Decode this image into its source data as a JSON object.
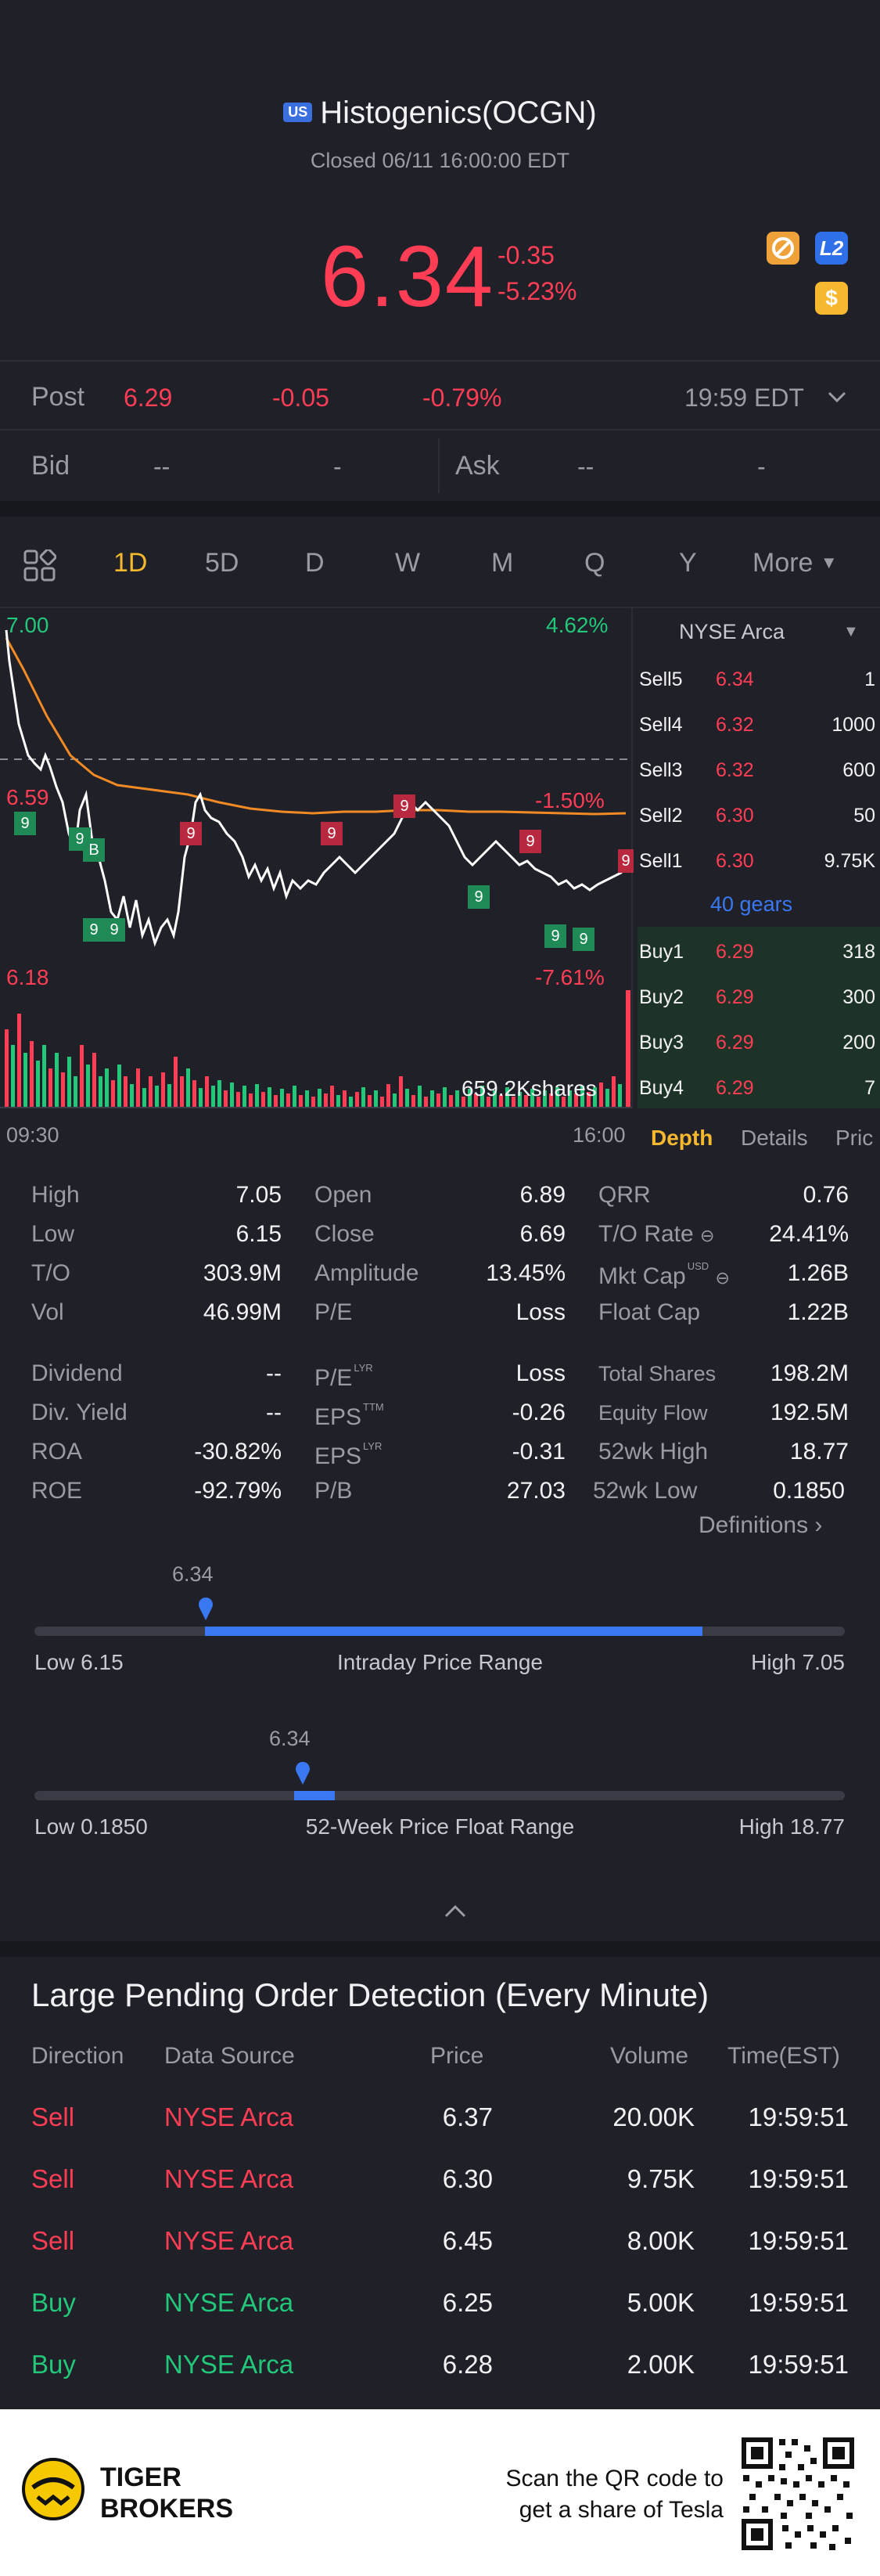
{
  "header": {
    "market_badge": "US",
    "title": "Histogenics(OCGN)",
    "status": "Closed 06/11 16:00:00 EDT",
    "price": "6.34",
    "change": "-0.35",
    "change_pct": "-5.23%",
    "badge_l2": "L2",
    "badge_dollar": "$"
  },
  "post": {
    "label": "Post",
    "price": "6.29",
    "change": "-0.05",
    "change_pct": "-0.79%",
    "time": "19:59 EDT"
  },
  "quote": {
    "bid_label": "Bid",
    "bid_price": "--",
    "bid_size": "-",
    "ask_label": "Ask",
    "ask_price": "--",
    "ask_size": "-"
  },
  "tabs": [
    "1D",
    "5D",
    "D",
    "W",
    "M",
    "Q",
    "Y",
    "More"
  ],
  "active_tab": "1D",
  "chart": {
    "high_label": "7.00",
    "high_pct": "4.62%",
    "mid_label": "6.59",
    "mid_pct": "-1.50%",
    "low_label": "6.18",
    "low_pct": "-7.61%",
    "volume_label": "659.2Kshares",
    "time_start": "09:30",
    "time_end": "16:00",
    "marker_9": "9",
    "marker_b": "B"
  },
  "orderbook": {
    "exchange": "NYSE Arca",
    "sells": [
      {
        "label": "Sell5",
        "price": "6.34",
        "size": "1"
      },
      {
        "label": "Sell4",
        "price": "6.32",
        "size": "1000"
      },
      {
        "label": "Sell3",
        "price": "6.32",
        "size": "600"
      },
      {
        "label": "Sell2",
        "price": "6.30",
        "size": "50"
      },
      {
        "label": "Sell1",
        "price": "6.30",
        "size": "9.75K"
      }
    ],
    "gears": "40 gears",
    "buys": [
      {
        "label": "Buy1",
        "price": "6.29",
        "size": "318"
      },
      {
        "label": "Buy2",
        "price": "6.29",
        "size": "300"
      },
      {
        "label": "Buy3",
        "price": "6.29",
        "size": "200"
      },
      {
        "label": "Buy4",
        "price": "6.29",
        "size": "7"
      }
    ],
    "tab_depth": "Depth",
    "tab_details": "Details",
    "tab_price": "Pric"
  },
  "stats": {
    "high_l": "High",
    "high_v": "7.05",
    "low_l": "Low",
    "low_v": "6.15",
    "to_l": "T/O",
    "to_v": "303.9M",
    "vol_l": "Vol",
    "vol_v": "46.99M",
    "open_l": "Open",
    "open_v": "6.89",
    "close_l": "Close",
    "close_v": "6.69",
    "amp_l": "Amplitude",
    "amp_v": "13.45%",
    "pe_l": "P/E",
    "pe_v": "Loss",
    "qrr_l": "QRR",
    "qrr_v": "0.76",
    "torate_l": "T/O Rate",
    "torate_v": "24.41%",
    "mktcap_l": "Mkt Cap",
    "mktcap_sup": "USD",
    "mktcap_v": "1.26B",
    "floatcap_l": "Float Cap",
    "floatcap_v": "1.22B",
    "div_l": "Dividend",
    "div_v": "--",
    "divy_l": "Div. Yield",
    "divy_v": "--",
    "roa_l": "ROA",
    "roa_v": "-30.82%",
    "roe_l": "ROE",
    "roe_v": "-92.79%",
    "pelyr_l": "P/E",
    "pelyr_sup": "LYR",
    "pelyr_v": "Loss",
    "epsttm_l": "EPS",
    "epsttm_sup": "TTM",
    "epsttm_v": "-0.26",
    "epslyr_l": "EPS",
    "epslyr_sup": "LYR",
    "epslyr_v": "-0.31",
    "pb_l": "P/B",
    "pb_v": "27.03",
    "shares_l": "Total Shares",
    "shares_v": "198.2M",
    "equity_l": "Equity Flow",
    "equity_v": "192.5M",
    "wkhigh_l": "52wk High",
    "wkhigh_v": "18.77",
    "wklow_l": "52wk Low",
    "wklow_v": "0.1850",
    "definitions": "Definitions"
  },
  "intraday_range": {
    "current": "6.34",
    "low": "Low 6.15",
    "high": "High 7.05",
    "title": "Intraday Price Range",
    "low_value": 6.15,
    "high_value": 7.05,
    "value": 6.34
  },
  "week52_range": {
    "current": "6.34",
    "low": "Low 0.1850",
    "high": "High 18.77",
    "title": "52-Week Price Float Range",
    "low_value": 0.185,
    "high_value": 18.77,
    "value": 6.34
  },
  "large_orders": {
    "title": "Large Pending Order Detection (Every Minute)",
    "headers": [
      "Direction",
      "Data Source",
      "Price",
      "Volume",
      "Time(EST)"
    ],
    "rows": [
      {
        "direction": "Sell",
        "source": "NYSE Arca",
        "price": "6.37",
        "volume": "20.00K",
        "time": "19:59:51"
      },
      {
        "direction": "Sell",
        "source": "NYSE Arca",
        "price": "6.30",
        "volume": "9.75K",
        "time": "19:59:51"
      },
      {
        "direction": "Sell",
        "source": "NYSE Arca",
        "price": "6.45",
        "volume": "8.00K",
        "time": "19:59:51"
      },
      {
        "direction": "Buy",
        "source": "NYSE Arca",
        "price": "6.25",
        "volume": "5.00K",
        "time": "19:59:51"
      },
      {
        "direction": "Buy",
        "source": "NYSE Arca",
        "price": "6.28",
        "volume": "2.00K",
        "time": "19:59:51"
      }
    ]
  },
  "footer": {
    "brand_line1": "TIGER",
    "brand_line2": "BROKERS",
    "promo_line1": "Scan the QR code to",
    "promo_line2": "get a share of Tesla"
  },
  "colors": {
    "up": "#22c77a",
    "down": "#ff3d55",
    "accent": "#3a78f2",
    "active_tab": "#f5b82e"
  }
}
